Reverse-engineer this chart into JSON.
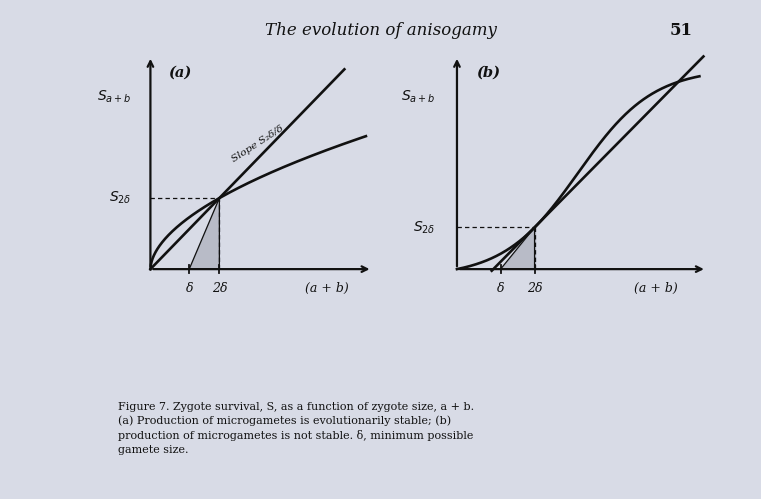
{
  "bg_color": "#d8dbe6",
  "title_text": "The evolution of anisogamy",
  "title_page": "51",
  "panel_a_label": "(a)",
  "panel_b_label": "(b)",
  "slope_label": "Slope S₂δ/δ",
  "x_label": "(a + b)",
  "x_tick_delta": "δ",
  "x_tick_2delta": "2δ",
  "caption": "Figure 7. Zygote survival, S, as a function of zygote size, a + b.\n(a) Production of microgametes is evolutionarily stable; (b)\nproduction of microgametes is not stable. δ, minimum possible\ngamete size.",
  "line_color": "#111111"
}
